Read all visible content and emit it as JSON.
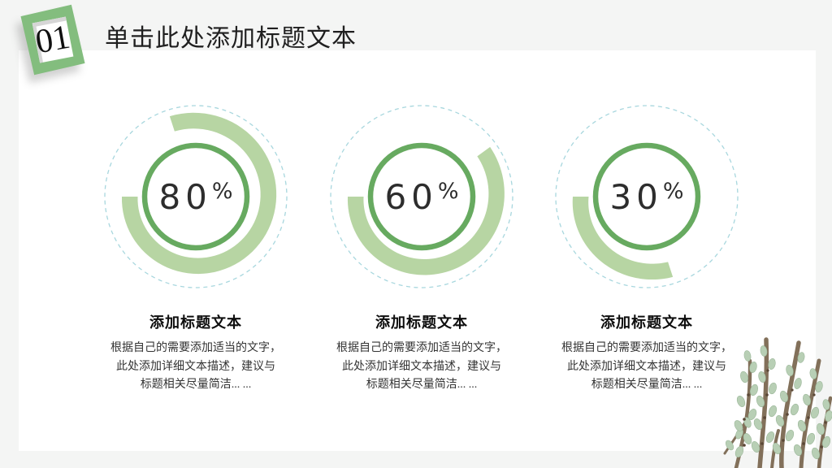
{
  "slide": {
    "section_number": "01",
    "title": "单击此处添加标题文本"
  },
  "items": [
    {
      "percent": "80",
      "unit": "%",
      "title": "添加标题文本",
      "body_lines": [
        "根据自己的需要添加适当的文字，",
        "此处添加详细文本描述，建议与",
        "标题相关尽量简洁... ..."
      ]
    },
    {
      "percent": "60",
      "unit": "%",
      "title": "添加标题文本",
      "body_lines": [
        "根据自己的需要添加适当的文字，",
        "此处添加详细文本描述，建议与",
        "标题相关尽量简洁... ..."
      ]
    },
    {
      "percent": "30",
      "unit": "%",
      "title": "添加标题文本",
      "body_lines": [
        "根据自己的需要添加适当的文字，",
        "此处添加详细文本描述，建议与",
        "标题相关尽量简洁... ..."
      ]
    }
  ],
  "colors": {
    "accent_green": "#83bd7e",
    "ring_green": "#67aa60",
    "arc_light_green": "#b7d5a3",
    "dashed_circle_blue": "#a8d7de",
    "background_gray": "#f4f5f4",
    "card_white": "#ffffff",
    "text_dark": "#2e2e2e"
  },
  "chart_data": {
    "type": "pie",
    "variant": "progress-rings",
    "values": [
      80,
      60,
      30
    ],
    "unit": "%",
    "labels": [
      "添加标题文本",
      "添加标题文本",
      "添加标题文本"
    ],
    "title": "单击此处添加标题文本"
  }
}
